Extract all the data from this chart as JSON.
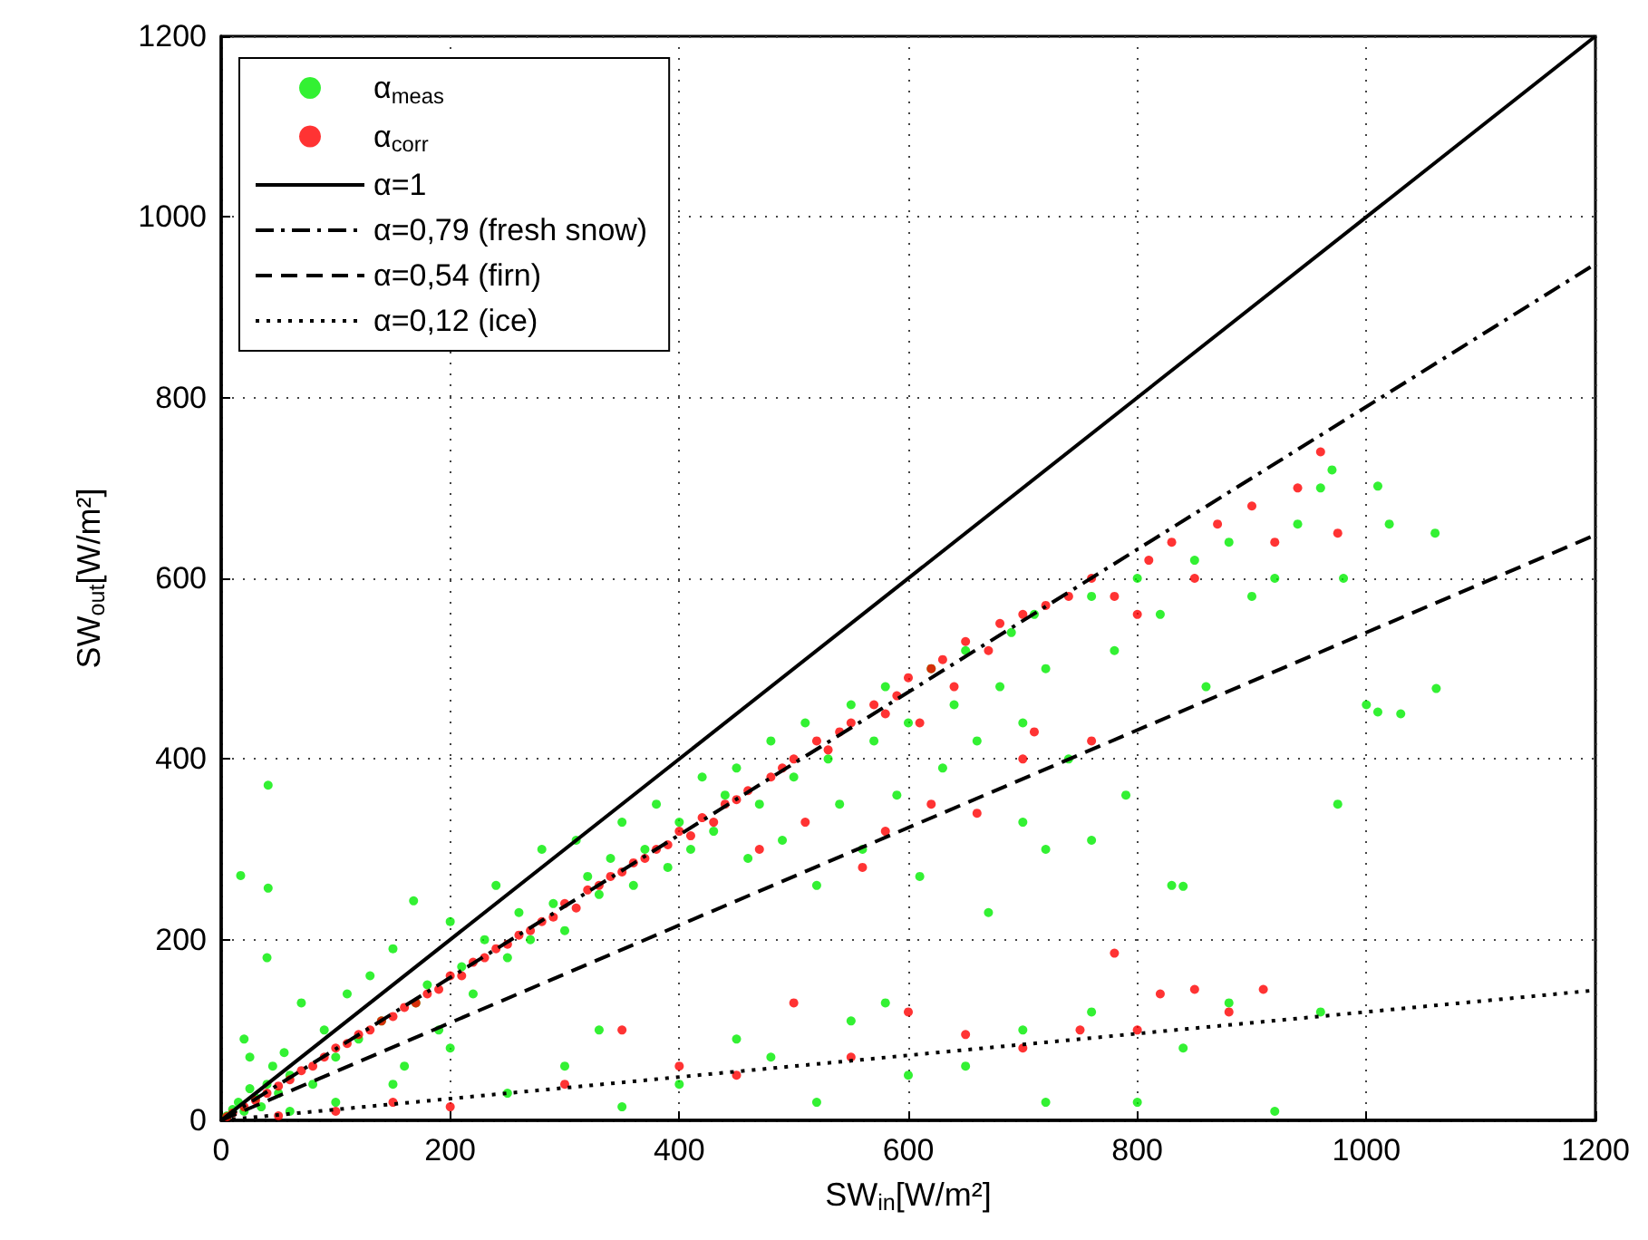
{
  "chart_data": {
    "type": "scatter",
    "xlabel": "SW$_{in}$[W/m²]",
    "ylabel": "SW$_{out}$[W/m²]",
    "xlim": [
      0,
      1200
    ],
    "ylim": [
      0,
      1200
    ],
    "xticks": [
      0,
      200,
      400,
      600,
      800,
      1000,
      1200
    ],
    "yticks": [
      0,
      200,
      400,
      600,
      800,
      1000,
      1200
    ],
    "grid": true,
    "legend": "top left",
    "marker": "circle",
    "series": [
      {
        "name": "α$_{meas}$",
        "color": "#00ee00",
        "x": [
          5,
          10,
          15,
          20,
          25,
          30,
          35,
          40,
          45,
          50,
          55,
          60,
          20,
          25,
          40,
          17,
          41,
          41,
          70,
          80,
          90,
          100,
          110,
          120,
          130,
          140,
          150,
          160,
          170,
          168,
          180,
          190,
          200,
          210,
          220,
          230,
          240,
          250,
          260,
          270,
          280,
          290,
          300,
          310,
          320,
          330,
          340,
          350,
          360,
          370,
          380,
          390,
          400,
          410,
          420,
          430,
          440,
          450,
          460,
          470,
          480,
          490,
          500,
          510,
          520,
          530,
          540,
          550,
          560,
          570,
          580,
          590,
          600,
          610,
          620,
          630,
          640,
          650,
          660,
          670,
          680,
          690,
          700,
          710,
          720,
          740,
          760,
          780,
          790,
          800,
          820,
          830,
          850,
          860,
          880,
          900,
          920,
          940,
          960,
          970,
          975,
          980,
          1010,
          1020,
          1000,
          1010,
          1030,
          1061,
          1060,
          60,
          100,
          150,
          200,
          250,
          300,
          330,
          350,
          400,
          450,
          480,
          520,
          550,
          580,
          600,
          650,
          700,
          720,
          760,
          800,
          840,
          880,
          920,
          960,
          840,
          720,
          760,
          700
        ],
        "values": [
          5,
          12,
          20,
          10,
          35,
          25,
          15,
          40,
          60,
          30,
          75,
          50,
          90,
          70,
          180,
          271,
          257,
          371,
          130,
          40,
          100,
          70,
          140,
          90,
          160,
          110,
          190,
          60,
          130,
          243,
          150,
          100,
          220,
          170,
          140,
          200,
          260,
          180,
          230,
          200,
          300,
          240,
          210,
          310,
          270,
          250,
          290,
          330,
          260,
          300,
          350,
          280,
          330,
          300,
          380,
          320,
          360,
          390,
          290,
          350,
          420,
          310,
          380,
          440,
          260,
          400,
          350,
          460,
          300,
          420,
          480,
          360,
          440,
          270,
          500,
          390,
          460,
          520,
          420,
          230,
          480,
          540,
          440,
          560,
          500,
          400,
          580,
          520,
          360,
          600,
          560,
          260,
          620,
          480,
          640,
          580,
          600,
          660,
          700,
          720,
          350,
          600,
          702,
          660,
          460,
          452,
          450,
          478,
          650,
          10,
          20,
          40,
          80,
          30,
          60,
          100,
          15,
          40,
          90,
          70,
          20,
          110,
          130,
          50,
          60,
          100,
          20,
          120,
          20,
          80,
          130,
          10,
          120,
          259,
          300,
          310,
          330
        ]
      },
      {
        "name": "α$_{corr}$",
        "color": "#ff0000",
        "x": [
          5,
          10,
          20,
          30,
          40,
          50,
          60,
          70,
          80,
          90,
          100,
          110,
          120,
          130,
          140,
          150,
          160,
          170,
          180,
          190,
          200,
          210,
          220,
          230,
          240,
          250,
          260,
          270,
          280,
          290,
          300,
          310,
          320,
          330,
          340,
          350,
          360,
          370,
          380,
          390,
          400,
          410,
          420,
          430,
          440,
          450,
          460,
          470,
          480,
          490,
          500,
          510,
          520,
          530,
          540,
          550,
          560,
          570,
          580,
          590,
          600,
          610,
          620,
          630,
          640,
          650,
          660,
          670,
          680,
          700,
          710,
          720,
          740,
          760,
          780,
          800,
          810,
          830,
          850,
          870,
          900,
          920,
          940,
          960,
          975,
          580,
          620,
          700,
          760,
          50,
          100,
          150,
          200,
          300,
          350,
          400,
          450,
          500,
          550,
          600,
          650,
          700,
          750,
          780,
          800,
          820,
          850,
          880,
          910
        ],
        "values": [
          4,
          8,
          15,
          22,
          30,
          38,
          45,
          55,
          60,
          70,
          80,
          85,
          95,
          100,
          110,
          115,
          125,
          130,
          140,
          145,
          160,
          160,
          175,
          180,
          190,
          195,
          205,
          210,
          220,
          225,
          240,
          235,
          255,
          260,
          270,
          275,
          285,
          290,
          300,
          305,
          320,
          315,
          335,
          330,
          350,
          355,
          365,
          300,
          380,
          390,
          400,
          330,
          420,
          410,
          430,
          440,
          280,
          460,
          450,
          470,
          490,
          440,
          500,
          510,
          480,
          530,
          340,
          520,
          550,
          560,
          430,
          570,
          580,
          600,
          580,
          560,
          620,
          640,
          600,
          660,
          680,
          640,
          700,
          740,
          650,
          320,
          350,
          400,
          420,
          5,
          10,
          20,
          15,
          40,
          100,
          60,
          50,
          130,
          70,
          120,
          95,
          80,
          100,
          185,
          100,
          140,
          145,
          120,
          145
        ]
      },
      {
        "name": "α=1",
        "type": "line",
        "color": "#000000",
        "line_style": "solid",
        "marker": "none",
        "x": [
          0,
          1200
        ],
        "values": [
          0,
          1200
        ]
      },
      {
        "name": "α=0,79 (fresh snow)",
        "type": "line",
        "color": "#000000",
        "line_style": "dashdot",
        "marker": "none",
        "x": [
          0,
          1200
        ],
        "values": [
          0,
          948
        ]
      },
      {
        "name": "α=0,54 (firn)",
        "type": "line",
        "color": "#000000",
        "line_style": "dashed",
        "marker": "none",
        "x": [
          0,
          1200
        ],
        "values": [
          0,
          648
        ]
      },
      {
        "name": "α=0,12 (ice)",
        "type": "line",
        "color": "#000000",
        "line_style": "dotted",
        "marker": "none",
        "x": [
          0,
          1200
        ],
        "values": [
          0,
          144
        ]
      }
    ]
  }
}
